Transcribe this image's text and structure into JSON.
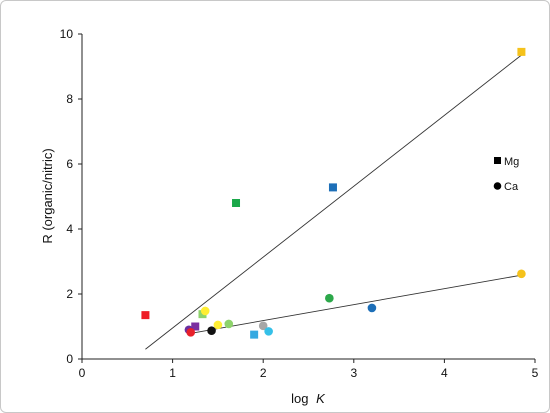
{
  "chart_data": {
    "type": "scatter",
    "xlabel": "log",
    "xlabel_italic": "K",
    "ylabel": "R (organic/nitric)",
    "xlim": [
      0,
      5
    ],
    "ylim": [
      0,
      10
    ],
    "x_ticks": [
      "0",
      "1",
      "2",
      "3",
      "4",
      "5"
    ],
    "y_ticks": [
      "0",
      "2",
      "4",
      "6",
      "8",
      "10"
    ],
    "grid": false,
    "legend_position": "right",
    "legend": [
      {
        "label": "Mg",
        "marker": "square"
      },
      {
        "label": "Ca",
        "marker": "circle"
      }
    ],
    "series": [
      {
        "name": "Mg",
        "marker": "square",
        "points": [
          {
            "x": 0.7,
            "y": 1.35,
            "color": "#ee1c25"
          },
          {
            "x": 1.25,
            "y": 1.0,
            "color": "#7b2fa0"
          },
          {
            "x": 1.33,
            "y": 1.38,
            "color": "#8ed36b"
          },
          {
            "x": 1.7,
            "y": 4.8,
            "color": "#1ba84a"
          },
          {
            "x": 1.9,
            "y": 0.75,
            "color": "#35a9e1"
          },
          {
            "x": 2.77,
            "y": 5.28,
            "color": "#1d6fb8"
          },
          {
            "x": 4.85,
            "y": 9.45,
            "color": "#f5c21b"
          }
        ]
      },
      {
        "name": "Ca",
        "marker": "circle",
        "points": [
          {
            "x": 1.18,
            "y": 0.9,
            "color": "#6a2fa0"
          },
          {
            "x": 1.2,
            "y": 0.82,
            "color": "#e8202a"
          },
          {
            "x": 1.36,
            "y": 1.48,
            "color": "#ffee33"
          },
          {
            "x": 1.43,
            "y": 0.87,
            "color": "#111111"
          },
          {
            "x": 1.5,
            "y": 1.05,
            "color": "#ffee33"
          },
          {
            "x": 1.62,
            "y": 1.08,
            "color": "#8ed36b"
          },
          {
            "x": 2.0,
            "y": 1.02,
            "color": "#a6a6a6"
          },
          {
            "x": 2.06,
            "y": 0.85,
            "color": "#35c0e8"
          },
          {
            "x": 2.73,
            "y": 1.87,
            "color": "#2ca84a"
          },
          {
            "x": 3.2,
            "y": 1.57,
            "color": "#1d6fb8"
          },
          {
            "x": 4.85,
            "y": 2.62,
            "color": "#f5c21b"
          }
        ]
      }
    ],
    "trendlines": [
      {
        "series": "Mg",
        "x": [
          0.7,
          4.85
        ],
        "y": [
          0.3,
          9.35
        ]
      },
      {
        "series": "Ca",
        "x": [
          1.18,
          4.85
        ],
        "y": [
          0.78,
          2.58
        ]
      }
    ]
  }
}
